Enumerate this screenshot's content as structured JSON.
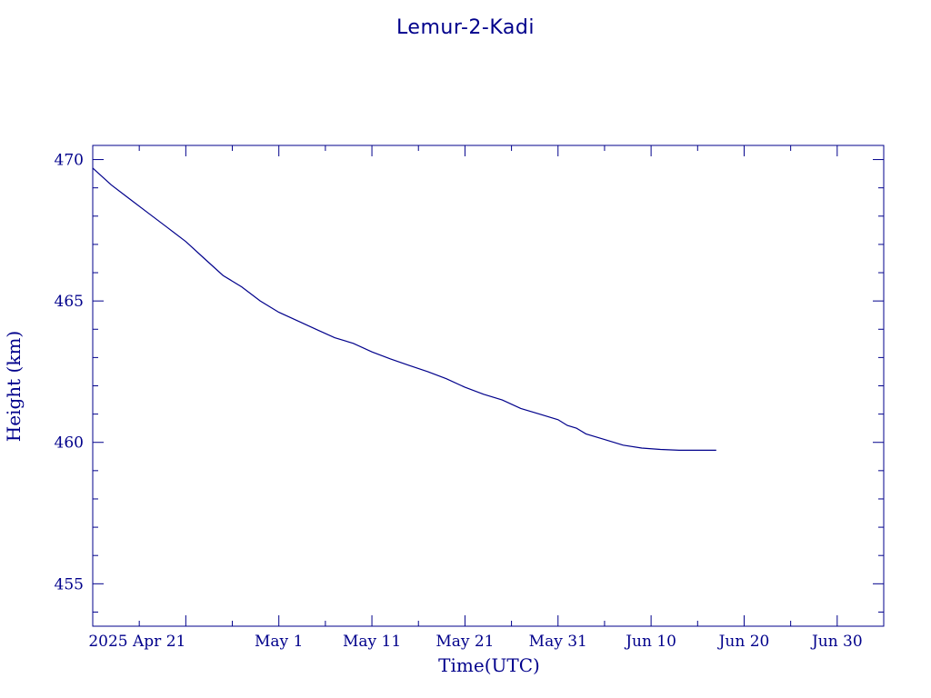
{
  "chart_data": {
    "type": "line",
    "title": "Lemur-2-Kadi",
    "xlabel": "Time(UTC)",
    "ylabel": "Height (km)",
    "x_tick_labels": [
      "2025 Apr 21",
      "May  1",
      "May 11",
      "May 21",
      "May 31",
      "Jun 10",
      "Jun 20",
      "Jun 30"
    ],
    "y_tick_labels": [
      "455",
      "460",
      "465",
      "470"
    ],
    "xlim": [
      "2025-04-11",
      "2025-07-05"
    ],
    "ylim": [
      453.5,
      470.5
    ],
    "grid": false,
    "series": [
      {
        "color": "#00008b",
        "x": [
          "2025-04-11",
          "2025-04-13",
          "2025-04-15",
          "2025-04-17",
          "2025-04-19",
          "2025-04-21",
          "2025-04-23",
          "2025-04-25",
          "2025-04-27",
          "2025-04-29",
          "2025-05-01",
          "2025-05-03",
          "2025-05-05",
          "2025-05-07",
          "2025-05-09",
          "2025-05-11",
          "2025-05-13",
          "2025-05-15",
          "2025-05-17",
          "2025-05-19",
          "2025-05-21",
          "2025-05-23",
          "2025-05-25",
          "2025-05-27",
          "2025-05-29",
          "2025-05-31",
          "2025-06-01",
          "2025-06-02",
          "2025-06-03",
          "2025-06-05",
          "2025-06-07",
          "2025-06-09",
          "2025-06-11",
          "2025-06-13",
          "2025-06-14",
          "2025-06-16",
          "2025-06-17"
        ],
        "y": [
          469.7,
          469.1,
          468.6,
          468.1,
          467.6,
          467.1,
          466.5,
          465.9,
          465.5,
          465.0,
          464.6,
          464.3,
          464.0,
          463.7,
          463.5,
          463.2,
          462.95,
          462.72,
          462.5,
          462.25,
          461.95,
          461.7,
          461.5,
          461.2,
          461.0,
          460.8,
          460.6,
          460.5,
          460.3,
          460.1,
          459.9,
          459.8,
          459.75,
          459.72,
          459.72,
          459.72,
          459.72
        ]
      }
    ]
  }
}
